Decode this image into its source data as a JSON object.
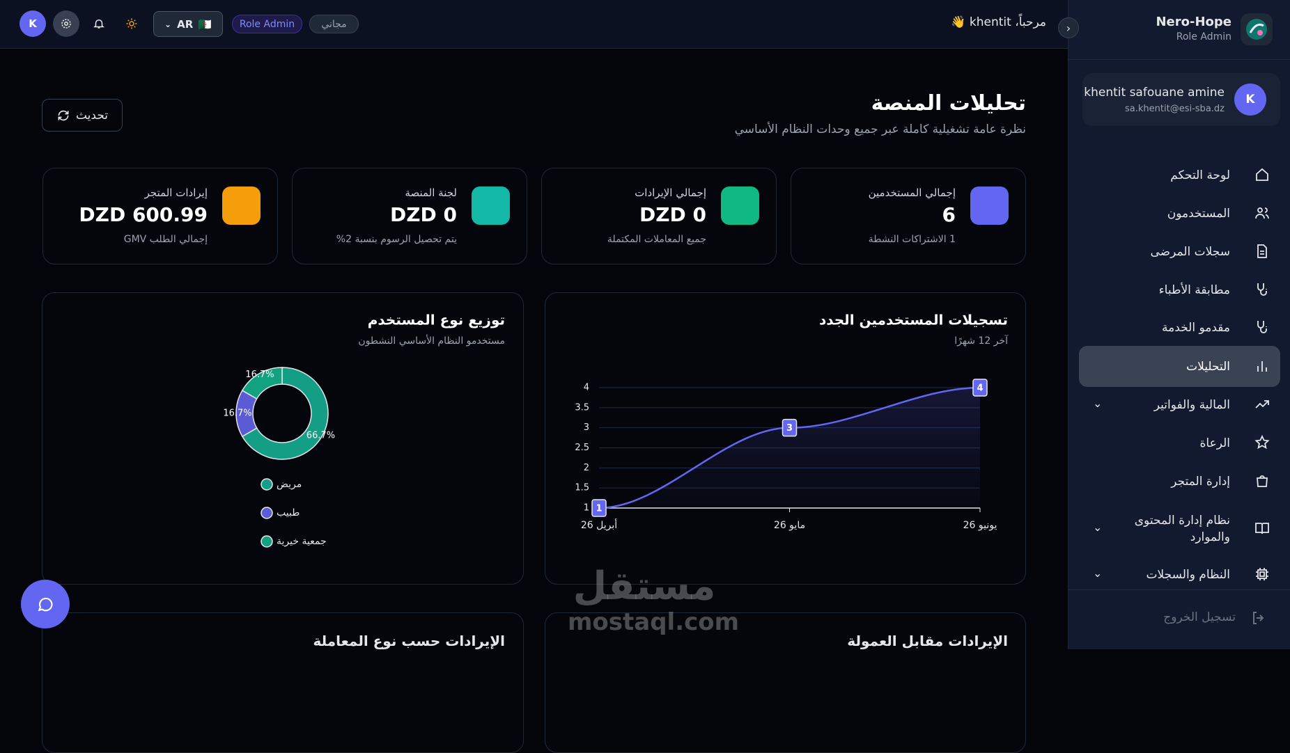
{
  "sidebar": {
    "brand": "Nero-Hope",
    "role": "Role Admin",
    "user": {
      "initial": "K",
      "name": "khentit safouane amine",
      "email": "sa.khentit@esi-sba.dz"
    },
    "nav": [
      {
        "label": "لوحة التحكم",
        "expandable": false
      },
      {
        "label": "المستخدمون",
        "expandable": false
      },
      {
        "label": "سجلات المرضى",
        "expandable": false
      },
      {
        "label": "مطابقة الأطباء",
        "expandable": false
      },
      {
        "label": "مقدمو الخدمة",
        "expandable": false
      },
      {
        "label": "التحليلات",
        "expandable": false,
        "active": true
      },
      {
        "label": "المالية والفواتير",
        "expandable": true
      },
      {
        "label": "الرعاة",
        "expandable": false
      },
      {
        "label": "إدارة المتجر",
        "expandable": false
      },
      {
        "label": "نظام إدارة المحتوى والموارد",
        "expandable": true
      },
      {
        "label": "النظام والسجلات",
        "expandable": true
      }
    ],
    "logout": "تسجيل الخروج"
  },
  "header": {
    "avatar": "K",
    "language": "AR",
    "flag": "🇩🇿",
    "role_badge": "Role Admin",
    "plan_badge": "مجاني",
    "greeting": "مرحباً، khentit 👋"
  },
  "page": {
    "title": "تحليلات المنصة",
    "subtitle": "نظرة عامة تشغيلية كاملة عبر جميع وحدات النظام الأساسي",
    "refresh": "تحديث"
  },
  "stats": [
    {
      "label": "إجمالي المستخدمين",
      "value": "6",
      "note": "1 الاشتراكات النشطة",
      "color": "#6366f1"
    },
    {
      "label": "إجمالي الإيرادات",
      "value": "DZD 0",
      "note": "جميع المعاملات المكتملة",
      "color": "#10b981"
    },
    {
      "label": "لجنة المنصة",
      "value": "DZD 0",
      "note": "يتم تحصيل الرسوم بنسبة 2%",
      "color": "#14b8a6"
    },
    {
      "label": "إيرادات المتجر",
      "value": "DZD 600.99",
      "note": "إجمالي الطلب GMV",
      "color": "#f59e0b"
    }
  ],
  "chart_data": [
    {
      "type": "line",
      "title": "تسجيلات المستخدمين الجدد",
      "subtitle": "آخر 12 شهرًا",
      "categories": [
        "أبريل 26",
        "مايو 26",
        "يونيو 26"
      ],
      "values": [
        1,
        3,
        4
      ],
      "color": "#6366f1",
      "ylim": [
        1,
        4
      ],
      "yticks": [
        1,
        1.5,
        2,
        2.5,
        3,
        3.5,
        4
      ],
      "grid": true
    },
    {
      "type": "donut",
      "title": "توزيع نوع المستخدم",
      "subtitle": "مستخدمو النظام الأساسي النشطون",
      "categories": [
        "مريض",
        "طبيب",
        "جمعية خيرية"
      ],
      "values": [
        66.7,
        16.7,
        16.7
      ],
      "value_labels": [
        "66.7%",
        "16.7%",
        "16.7%"
      ],
      "colors": [
        "#159e86",
        "#5b5bd6",
        "#12a27f"
      ]
    }
  ],
  "lower_panels": [
    "الإيرادات مقابل العمولة",
    "الإيرادات حسب نوع المعاملة"
  ],
  "watermark": {
    "arabic": "مستقل",
    "latin": "mostaql.com"
  }
}
